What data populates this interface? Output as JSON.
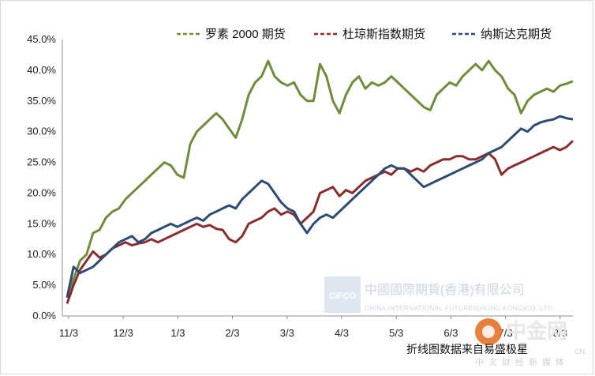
{
  "chart_data": {
    "type": "line",
    "title": "",
    "xlabel": "",
    "ylabel": "",
    "ylim": [
      0,
      45
    ],
    "y_ticks": [
      "0.0%",
      "5.0%",
      "10.0%",
      "15.0%",
      "20.0%",
      "25.0%",
      "30.0%",
      "35.0%",
      "40.0%",
      "45.0%"
    ],
    "x_ticks": [
      "11/3",
      "12/3",
      "1/3",
      "2/3",
      "3/3",
      "4/3",
      "5/3",
      "6/3",
      "7/3",
      "8/3"
    ],
    "grid": false,
    "legend_position": "top",
    "series": [
      {
        "name": "罗素 2000 期货",
        "color": "#6e8c3a",
        "dash": true,
        "points": [
          [
            0,
            3
          ],
          [
            3,
            6
          ],
          [
            6,
            9
          ],
          [
            9,
            10
          ],
          [
            12,
            13.5
          ],
          [
            15,
            14
          ],
          [
            18,
            16
          ],
          [
            21,
            17
          ],
          [
            24,
            17.5
          ],
          [
            27,
            19
          ],
          [
            30,
            20
          ],
          [
            33,
            21
          ],
          [
            36,
            22
          ],
          [
            39,
            23
          ],
          [
            42,
            24
          ],
          [
            45,
            25
          ],
          [
            48,
            24.5
          ],
          [
            51,
            23
          ],
          [
            54,
            22.5
          ],
          [
            57,
            28
          ],
          [
            60,
            30
          ],
          [
            63,
            31
          ],
          [
            66,
            32
          ],
          [
            69,
            33
          ],
          [
            72,
            32
          ],
          [
            75,
            30.5
          ],
          [
            78,
            29
          ],
          [
            81,
            32
          ],
          [
            84,
            36
          ],
          [
            87,
            38
          ],
          [
            90,
            39
          ],
          [
            93,
            41.5
          ],
          [
            96,
            39
          ],
          [
            99,
            38
          ],
          [
            102,
            37.5
          ],
          [
            105,
            38
          ],
          [
            108,
            36
          ],
          [
            111,
            35
          ],
          [
            114,
            35
          ],
          [
            117,
            41
          ],
          [
            120,
            39
          ],
          [
            123,
            35
          ],
          [
            126,
            33
          ],
          [
            129,
            36
          ],
          [
            132,
            38
          ],
          [
            135,
            39
          ],
          [
            138,
            37
          ],
          [
            141,
            38
          ],
          [
            144,
            37.5
          ],
          [
            147,
            38
          ],
          [
            150,
            39
          ],
          [
            153,
            38
          ],
          [
            156,
            37
          ],
          [
            159,
            36
          ],
          [
            162,
            35
          ],
          [
            165,
            34
          ],
          [
            168,
            33.5
          ],
          [
            171,
            36
          ],
          [
            174,
            37
          ],
          [
            177,
            38
          ],
          [
            180,
            37.5
          ],
          [
            183,
            39
          ],
          [
            186,
            40
          ],
          [
            189,
            41
          ],
          [
            192,
            40
          ],
          [
            195,
            41.5
          ],
          [
            198,
            40
          ],
          [
            201,
            39
          ],
          [
            204,
            37
          ],
          [
            207,
            36
          ],
          [
            210,
            33
          ],
          [
            213,
            35
          ],
          [
            216,
            36
          ],
          [
            219,
            36.5
          ],
          [
            222,
            37
          ],
          [
            225,
            36.5
          ],
          [
            228,
            37.5
          ],
          [
            231,
            37.8
          ],
          [
            234,
            38.2
          ]
        ]
      },
      {
        "name": "杜琼斯指数期货",
        "color": "#8b2c2c",
        "dash": true,
        "points": [
          [
            0,
            2
          ],
          [
            3,
            5
          ],
          [
            6,
            7.5
          ],
          [
            9,
            9
          ],
          [
            12,
            10.5
          ],
          [
            15,
            9.5
          ],
          [
            18,
            10
          ],
          [
            21,
            11
          ],
          [
            24,
            11.5
          ],
          [
            27,
            12
          ],
          [
            30,
            11.5
          ],
          [
            33,
            11.8
          ],
          [
            36,
            12
          ],
          [
            39,
            12.5
          ],
          [
            42,
            12
          ],
          [
            45,
            12.5
          ],
          [
            48,
            13
          ],
          [
            51,
            13.5
          ],
          [
            54,
            14
          ],
          [
            57,
            14.5
          ],
          [
            60,
            15
          ],
          [
            63,
            14.5
          ],
          [
            66,
            14.8
          ],
          [
            69,
            14.2
          ],
          [
            72,
            14
          ],
          [
            75,
            12.5
          ],
          [
            78,
            12
          ],
          [
            81,
            13
          ],
          [
            84,
            15
          ],
          [
            87,
            15.5
          ],
          [
            90,
            16
          ],
          [
            93,
            17
          ],
          [
            96,
            17.5
          ],
          [
            99,
            16.5
          ],
          [
            102,
            17
          ],
          [
            105,
            16.5
          ],
          [
            108,
            15
          ],
          [
            111,
            16
          ],
          [
            114,
            17
          ],
          [
            117,
            20
          ],
          [
            120,
            20.5
          ],
          [
            123,
            21
          ],
          [
            126,
            19.5
          ],
          [
            129,
            20.5
          ],
          [
            132,
            20
          ],
          [
            135,
            21
          ],
          [
            138,
            22
          ],
          [
            141,
            22.5
          ],
          [
            144,
            23
          ],
          [
            147,
            23.5
          ],
          [
            150,
            23
          ],
          [
            153,
            24
          ],
          [
            156,
            24
          ],
          [
            159,
            23.5
          ],
          [
            162,
            24
          ],
          [
            165,
            23.5
          ],
          [
            168,
            24.5
          ],
          [
            171,
            25
          ],
          [
            174,
            25.5
          ],
          [
            177,
            25.5
          ],
          [
            180,
            26
          ],
          [
            183,
            26
          ],
          [
            186,
            25.5
          ],
          [
            189,
            25.5
          ],
          [
            192,
            26
          ],
          [
            195,
            26.5
          ],
          [
            198,
            25.5
          ],
          [
            201,
            23
          ],
          [
            204,
            24
          ],
          [
            207,
            24.5
          ],
          [
            210,
            25
          ],
          [
            213,
            25.5
          ],
          [
            216,
            26
          ],
          [
            219,
            26.5
          ],
          [
            222,
            27
          ],
          [
            225,
            27.5
          ],
          [
            228,
            27
          ],
          [
            231,
            27.5
          ],
          [
            234,
            28.5
          ]
        ]
      },
      {
        "name": "纳斯达克期货",
        "color": "#2c4a73",
        "dash": true,
        "points": [
          [
            0,
            3
          ],
          [
            3,
            8
          ],
          [
            6,
            7
          ],
          [
            9,
            7.5
          ],
          [
            12,
            8
          ],
          [
            15,
            9
          ],
          [
            18,
            10
          ],
          [
            21,
            11
          ],
          [
            24,
            12
          ],
          [
            27,
            12.5
          ],
          [
            30,
            13
          ],
          [
            33,
            12
          ],
          [
            36,
            12.5
          ],
          [
            39,
            13.5
          ],
          [
            42,
            14
          ],
          [
            45,
            14.5
          ],
          [
            48,
            15
          ],
          [
            51,
            14.5
          ],
          [
            54,
            15
          ],
          [
            57,
            15.5
          ],
          [
            60,
            16
          ],
          [
            63,
            15.5
          ],
          [
            66,
            16.5
          ],
          [
            69,
            17
          ],
          [
            72,
            17.5
          ],
          [
            75,
            18
          ],
          [
            78,
            17.5
          ],
          [
            81,
            19
          ],
          [
            84,
            20
          ],
          [
            87,
            21
          ],
          [
            90,
            22
          ],
          [
            93,
            21.5
          ],
          [
            96,
            20
          ],
          [
            99,
            18.5
          ],
          [
            102,
            17.5
          ],
          [
            105,
            17
          ],
          [
            108,
            15
          ],
          [
            111,
            13.5
          ],
          [
            114,
            15
          ],
          [
            117,
            16
          ],
          [
            120,
            16.5
          ],
          [
            123,
            16
          ],
          [
            126,
            17
          ],
          [
            129,
            18
          ],
          [
            132,
            19
          ],
          [
            135,
            20
          ],
          [
            138,
            21
          ],
          [
            141,
            22
          ],
          [
            144,
            23
          ],
          [
            147,
            24
          ],
          [
            150,
            24.5
          ],
          [
            153,
            24
          ],
          [
            156,
            24
          ],
          [
            159,
            23
          ],
          [
            162,
            22
          ],
          [
            165,
            21
          ],
          [
            168,
            21.5
          ],
          [
            171,
            22
          ],
          [
            174,
            22.5
          ],
          [
            177,
            23
          ],
          [
            180,
            23.5
          ],
          [
            183,
            24
          ],
          [
            186,
            24.5
          ],
          [
            189,
            25
          ],
          [
            192,
            25.5
          ],
          [
            195,
            26.5
          ],
          [
            198,
            27
          ],
          [
            201,
            27.5
          ],
          [
            204,
            28.5
          ],
          [
            207,
            29.5
          ],
          [
            210,
            30.5
          ],
          [
            213,
            30
          ],
          [
            216,
            31
          ],
          [
            219,
            31.5
          ],
          [
            222,
            31.8
          ],
          [
            225,
            32
          ],
          [
            228,
            32.5
          ],
          [
            231,
            32.2
          ],
          [
            234,
            32
          ]
        ]
      }
    ]
  },
  "watermark": {
    "logo_letters": "CIFCO",
    "company_cn": "中國國際期貨(香港)有限公司",
    "company_en": "CHINA INTERNATIONAL FUTURES(HONG KONG)CO.,LTD."
  },
  "source_note": "折线图数据来自易盛极星",
  "corner_logo": {
    "name": "中金网",
    "sub": "中文财经新媒体",
    "badge": "CN"
  }
}
